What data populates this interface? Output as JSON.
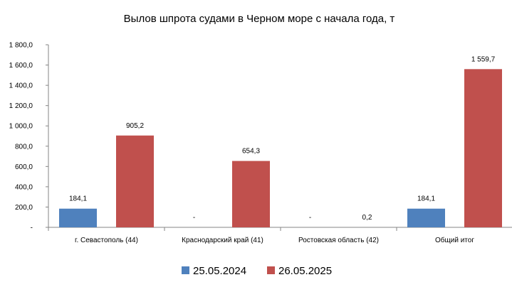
{
  "chart_data": {
    "type": "bar",
    "title": "Вылов шпрота судами в Черном море с начала  года, т",
    "categories": [
      "г. Севастополь (44)",
      "Краснодарский край (41)",
      "Ростовская область (42)",
      "Общий итог"
    ],
    "series": [
      {
        "name": "25.05.2024",
        "color": "#4f81bd",
        "values": [
          184.1,
          0,
          0,
          184.1
        ],
        "labels": [
          "184,1",
          "-",
          "-",
          "184,1"
        ]
      },
      {
        "name": "26.05.2025",
        "color": "#c0504d",
        "values": [
          905.2,
          654.3,
          0.2,
          1559.7
        ],
        "labels": [
          "905,2",
          "654,3",
          "0,2",
          "1 559,7"
        ]
      }
    ],
    "ylim": [
      0,
      1800
    ],
    "yticks": [
      0,
      200,
      400,
      600,
      800,
      1000,
      1200,
      1400,
      1600,
      1800
    ],
    "ytick_labels": [
      "-",
      "200,0",
      "400,0",
      "600,0",
      "800,0",
      "1 000,0",
      "1 200,0",
      "1 400,0",
      "1 600,0",
      "1 800,0"
    ],
    "legend_position": "bottom",
    "grid": false
  }
}
